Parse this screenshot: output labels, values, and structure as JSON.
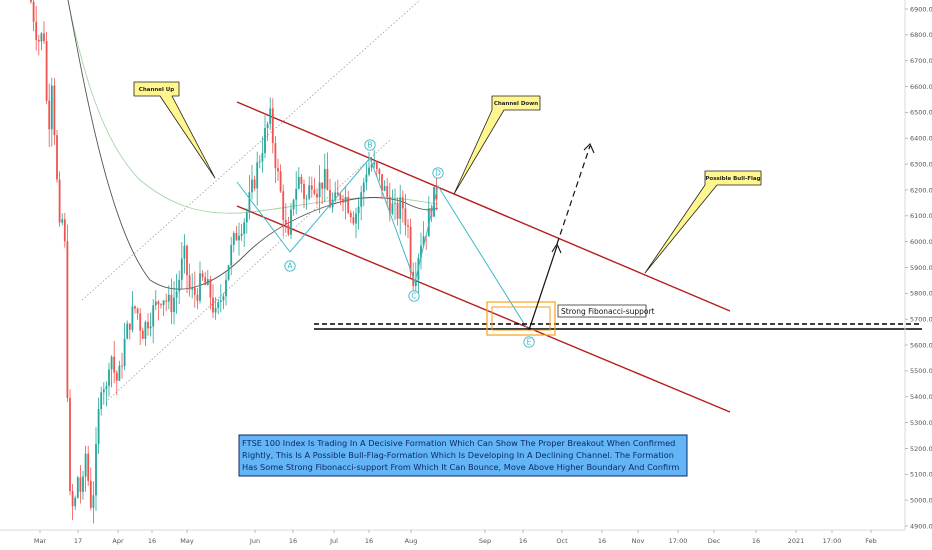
{
  "chart_data": {
    "type": "candlestick",
    "y_axis": {
      "position": "right",
      "ticks": [
        "6900.0",
        "6800.0",
        "6700.0",
        "6600.0",
        "6500.0",
        "6400.0",
        "6300.0",
        "6200.0",
        "6100.0",
        "6000.0",
        "5900.0",
        "5800.0",
        "5700.0",
        "5600.0",
        "5500.0",
        "5400.0",
        "5300.0",
        "5200.0",
        "5100.0",
        "5000.0",
        "4900.0"
      ],
      "range": [
        4860,
        6960
      ]
    },
    "x_axis": {
      "ticks": [
        "Mar",
        "17",
        "Apr",
        "16",
        "May",
        "Jun",
        "16",
        "Jul",
        "16",
        "Aug",
        "Sep",
        "16",
        "Oct",
        "16",
        "Nov",
        "17:00",
        "Dec",
        "16",
        "2021",
        "17:00",
        "Feb"
      ]
    },
    "callouts": {
      "channel_up": "Channel Up",
      "channel_down": "Channel Down",
      "bull_flag": "Possible Bull-Flag"
    },
    "wave_labels": [
      "A",
      "B",
      "C",
      "D",
      "E"
    ],
    "fib_label": "Strong Fibonacci-support",
    "description": [
      "FTSE 100 Index Is Trading In A Decisive Formation Which Can Show The Proper Breakout When Confirmed",
      "Rightly, This Is A Possible Bull-Flag-Formation Which Is Developing In A Declining Channel. The Formation",
      "Has Some Strong Fibonacci-support From Which It Can Bounce, Move Above Higher Boundary And Confirm"
    ],
    "key_levels": {
      "fib_support": 5680,
      "fib_support_dashed": 5690
    },
    "colors": {
      "up": "#26a69a",
      "down": "#ef5350",
      "channel": "#b71c1c",
      "wave": "#3fb8c9",
      "callout": "#fff68f",
      "desc_box": "#64b5f6",
      "fib_box": "#f7a21b"
    }
  }
}
